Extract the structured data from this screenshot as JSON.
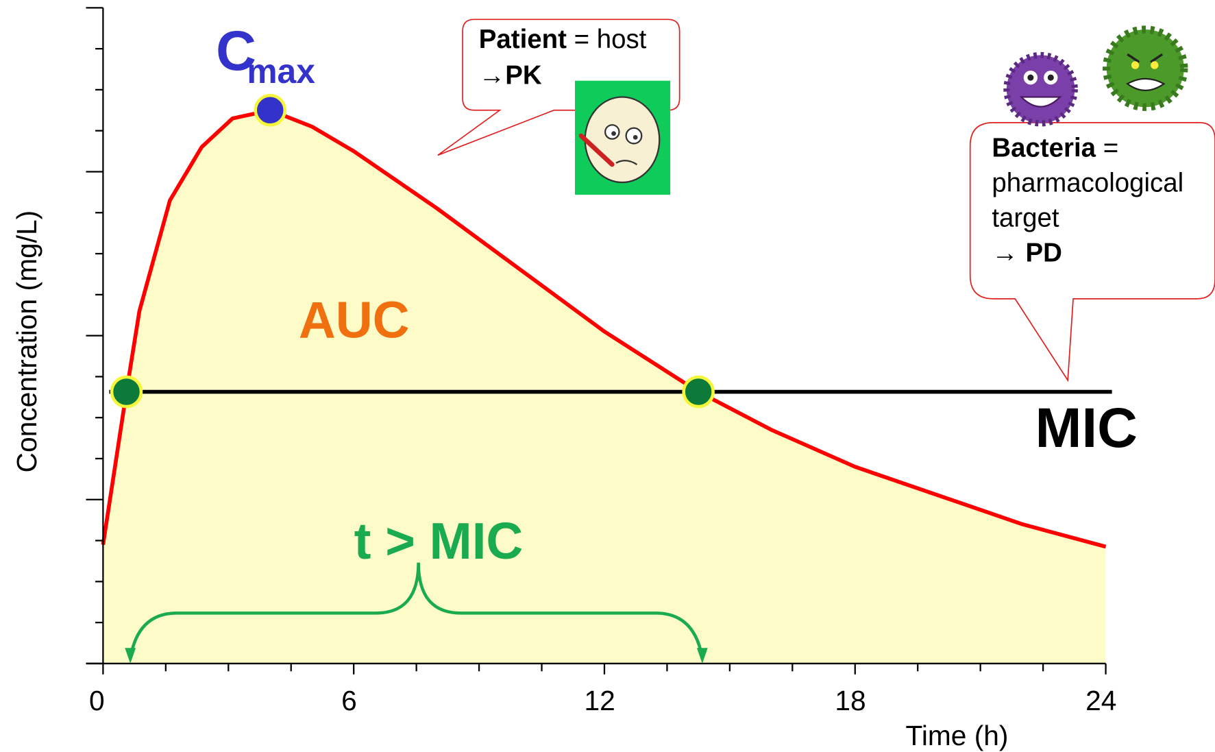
{
  "chart_data": {
    "type": "line",
    "xlabel": "Time (h)",
    "ylabel": "Concentration (mg/L)",
    "xlim": [
      0,
      24
    ],
    "ylim": [
      0,
      16
    ],
    "xticks": [
      0,
      6,
      12,
      18,
      24
    ],
    "fill_color": "#fdfcc8",
    "series": [
      {
        "color": "#ff0000",
        "x": [
          0,
          0.56,
          0.87,
          1.6,
          2.36,
          3.1,
          4,
          5,
          6,
          8,
          10,
          12,
          14.25,
          16,
          18,
          20,
          22,
          24
        ],
        "values": [
          2.9,
          6.63,
          8.6,
          11.3,
          12.6,
          13.3,
          13.5,
          13.1,
          12.5,
          11.1,
          9.6,
          8.1,
          6.63,
          5.7,
          4.8,
          4.1,
          3.4,
          2.85
        ]
      }
    ],
    "mic": {
      "label": "MIC",
      "value": 6.63,
      "color": "#000000"
    },
    "cmax": {
      "label": "C",
      "subscript": "max",
      "x": 4,
      "value": 13.5,
      "color": "#3333cc"
    },
    "mic_crossings": {
      "x": [
        0.56,
        14.25
      ],
      "values": [
        6.63,
        6.63
      ],
      "color": "#0d7a3a"
    },
    "auc_label": "AUC",
    "tmic_label": "t > MIC",
    "callouts": [
      {
        "lines": [
          [
            {
              "text": "Patient",
              "bold": true
            },
            {
              "text": " = host",
              "bold": false
            }
          ],
          [
            {
              "text": "→PK",
              "bold": true
            }
          ]
        ]
      },
      {
        "lines": [
          [
            {
              "text": "Bacteria",
              "bold": true
            },
            {
              "text": " =",
              "bold": false
            }
          ],
          [
            {
              "text": "pharmacological",
              "bold": false
            }
          ],
          [
            {
              "text": "target",
              "bold": false
            }
          ],
          [
            {
              "text": "→ ",
              "bold": false
            },
            {
              "text": "PD",
              "bold": true
            }
          ]
        ]
      }
    ]
  }
}
